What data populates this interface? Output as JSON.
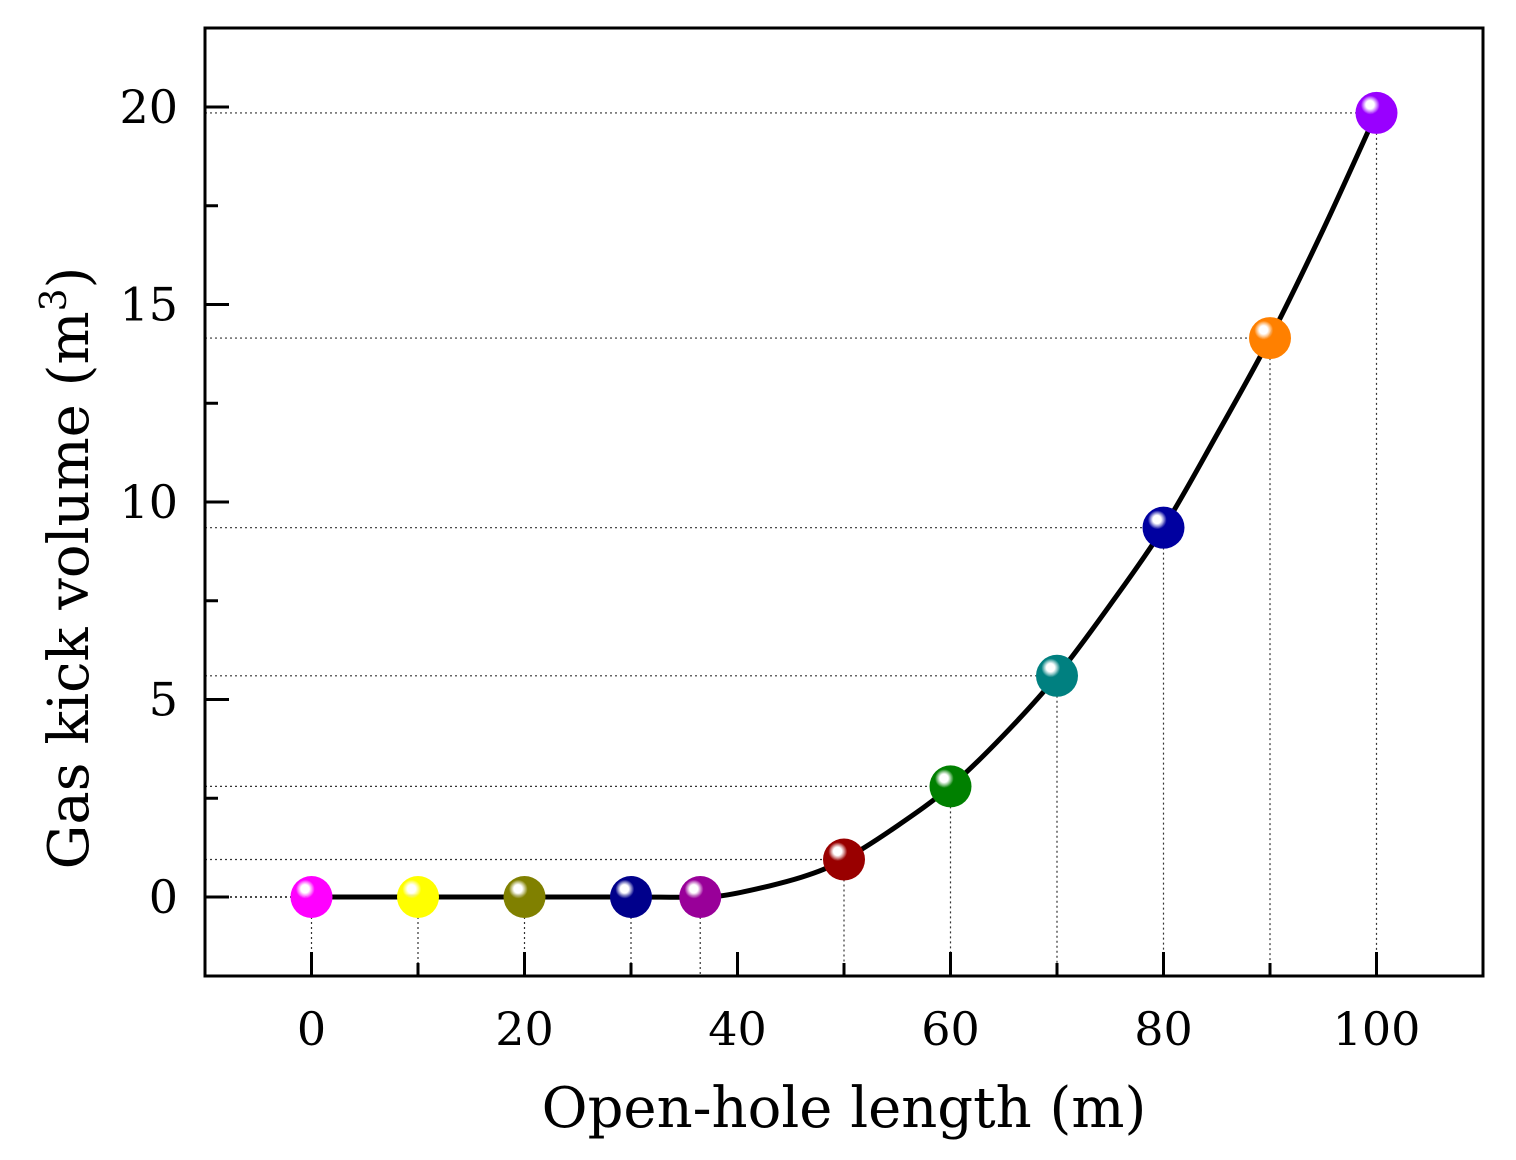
{
  "chart_data": {
    "type": "scatter",
    "title": "",
    "xlabel": "Open-hole length (m)",
    "ylabel_text": "Gas kick volume (m",
    "ylabel_superscript": "3",
    "ylabel_close": ")",
    "xlim": [
      -10,
      110
    ],
    "ylim": [
      -2,
      22
    ],
    "x_ticks": [
      0,
      20,
      40,
      60,
      80,
      100
    ],
    "x_tick_labels": [
      "0",
      "20",
      "40",
      "60",
      "80",
      "100"
    ],
    "x_minor_ticks": [
      10,
      30,
      50,
      70,
      90
    ],
    "y_ticks": [
      0,
      5,
      10,
      15,
      20
    ],
    "y_tick_labels": [
      "0",
      "5",
      "10",
      "15",
      "20"
    ],
    "y_minor_ticks": [
      2.5,
      7.5,
      12.5,
      17.5
    ],
    "grid": false,
    "points": [
      {
        "x": 0,
        "y": 0,
        "color": "#ff00ff"
      },
      {
        "x": 10,
        "y": 0,
        "color": "#ffff00"
      },
      {
        "x": 20,
        "y": 0,
        "color": "#808000"
      },
      {
        "x": 30,
        "y": 0,
        "color": "#00008b"
      },
      {
        "x": 36.5,
        "y": 0,
        "color": "#990099"
      },
      {
        "x": 50,
        "y": 0.95,
        "color": "#990000"
      },
      {
        "x": 60,
        "y": 2.8,
        "color": "#008000"
      },
      {
        "x": 70,
        "y": 5.6,
        "color": "#008080"
      },
      {
        "x": 80,
        "y": 9.35,
        "color": "#0000a0"
      },
      {
        "x": 90,
        "y": 14.15,
        "color": "#ff8000"
      },
      {
        "x": 100,
        "y": 19.85,
        "color": "#9900ff"
      }
    ],
    "curve": {
      "x": [
        0,
        10,
        20,
        30,
        36.5,
        40,
        46,
        50,
        55,
        60,
        65,
        70,
        75,
        80,
        85,
        90,
        95,
        100
      ],
      "y": [
        0,
        0,
        0,
        0,
        0,
        0.1,
        0.5,
        0.95,
        1.8,
        2.8,
        4.1,
        5.6,
        7.4,
        9.35,
        11.7,
        14.15,
        16.9,
        19.85
      ],
      "color": "#000000"
    }
  }
}
